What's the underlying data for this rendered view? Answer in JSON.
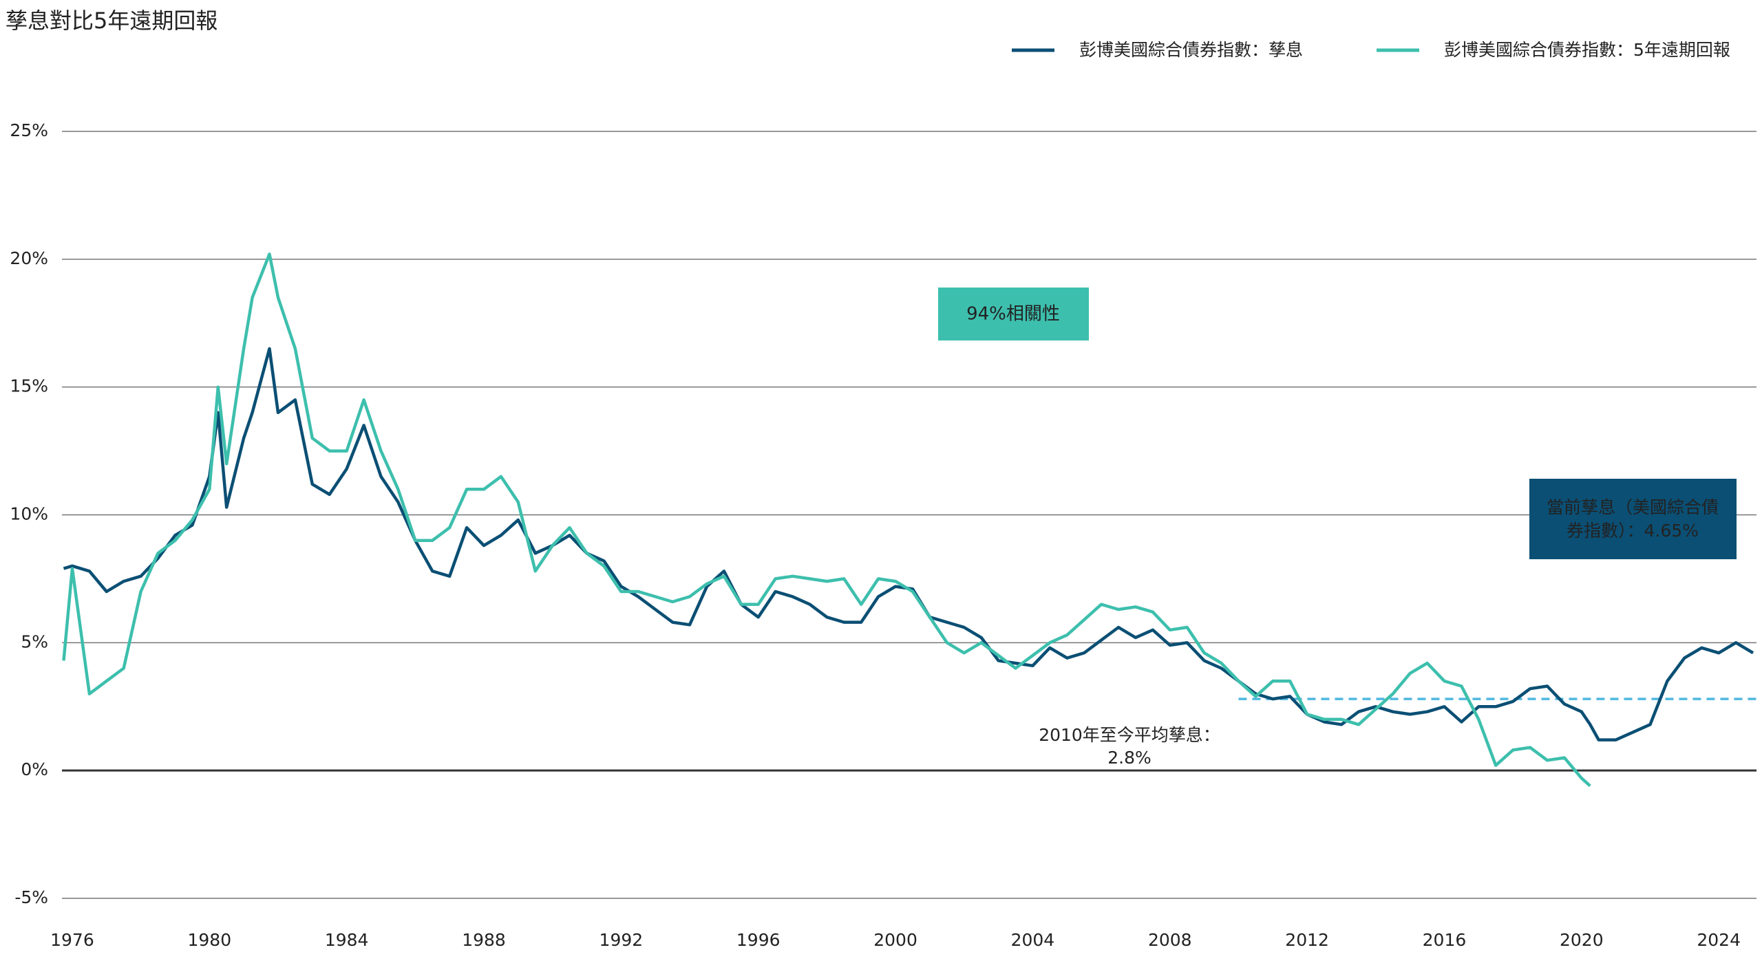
{
  "chart_data": {
    "type": "line",
    "title": "孳息對比5年遠期回報",
    "x": [
      1975.75,
      1976.0,
      1976.5,
      1977.0,
      1977.5,
      1978.0,
      1978.5,
      1979.0,
      1979.5,
      1980.0,
      1980.25,
      1980.5,
      1981.0,
      1981.25,
      1981.75,
      1982.0,
      1982.5,
      1983.0,
      1983.5,
      1984.0,
      1984.5,
      1985.0,
      1985.5,
      1986.0,
      1986.5,
      1987.0,
      1987.5,
      1988.0,
      1988.5,
      1989.0,
      1989.5,
      1990.0,
      1990.5,
      1991.0,
      1991.5,
      1992.0,
      1992.5,
      1993.0,
      1993.5,
      1994.0,
      1994.5,
      1995.0,
      1995.5,
      1996.0,
      1996.5,
      1997.0,
      1997.5,
      1998.0,
      1998.5,
      1999.0,
      1999.5,
      2000.0,
      2000.5,
      2001.0,
      2001.5,
      2002.0,
      2002.5,
      2003.0,
      2003.5,
      2004.0,
      2004.5,
      2005.0,
      2005.5,
      2006.0,
      2006.5,
      2007.0,
      2007.5,
      2008.0,
      2008.5,
      2009.0,
      2009.5,
      2010.0,
      2010.5,
      2011.0,
      2011.5,
      2012.0,
      2012.5,
      2013.0,
      2013.5,
      2014.0,
      2014.5,
      2015.0,
      2015.5,
      2016.0,
      2016.5,
      2017.0,
      2017.5,
      2018.0,
      2018.5,
      2019.0,
      2019.5,
      2020.0,
      2020.25,
      2020.5,
      2021.0,
      2021.5,
      2022.0,
      2022.5,
      2023.0,
      2023.5,
      2024.0,
      2024.5,
      2025.0
    ],
    "series": [
      {
        "name": "彭博美國綜合債券指數：孳息",
        "color": "#0b4f74",
        "values": [
          7.9,
          8.0,
          7.8,
          7.0,
          7.4,
          7.6,
          8.3,
          9.2,
          9.6,
          11.5,
          14.0,
          10.3,
          13.0,
          14.0,
          16.5,
          14.0,
          14.5,
          11.2,
          10.8,
          11.8,
          13.5,
          11.5,
          10.5,
          9.0,
          7.8,
          7.6,
          9.5,
          8.8,
          9.2,
          9.8,
          8.5,
          8.8,
          9.2,
          8.5,
          8.2,
          7.2,
          6.8,
          6.3,
          5.8,
          5.7,
          7.2,
          7.8,
          6.5,
          6.0,
          7.0,
          6.8,
          6.5,
          6.0,
          5.8,
          5.8,
          6.8,
          7.2,
          7.1,
          6.0,
          5.8,
          5.6,
          5.2,
          4.3,
          4.2,
          4.1,
          4.8,
          4.4,
          4.6,
          5.1,
          5.6,
          5.2,
          5.5,
          4.9,
          5.0,
          4.3,
          4.0,
          3.5,
          3.0,
          2.8,
          2.9,
          2.2,
          1.9,
          1.8,
          2.3,
          2.5,
          2.3,
          2.2,
          2.3,
          2.5,
          1.9,
          2.5,
          2.5,
          2.7,
          3.2,
          3.3,
          2.6,
          2.3,
          1.8,
          1.2,
          1.2,
          1.5,
          1.8,
          3.5,
          4.4,
          4.8,
          4.6,
          5.0,
          4.6
        ]
      },
      {
        "name": "彭博美國綜合債券指數：5年遠期回報",
        "color": "#3dbfad",
        "values": [
          4.3,
          7.9,
          3.0,
          3.5,
          4.0,
          7.0,
          8.5,
          9.0,
          9.8,
          11.0,
          15.0,
          12.0,
          16.5,
          18.5,
          20.2,
          18.5,
          16.5,
          13.0,
          12.5,
          12.5,
          14.5,
          12.5,
          11.0,
          9.0,
          9.0,
          9.5,
          11.0,
          11.0,
          11.5,
          10.5,
          7.8,
          8.8,
          9.5,
          8.5,
          8.0,
          7.0,
          7.0,
          6.8,
          6.6,
          6.8,
          7.3,
          7.6,
          6.5,
          6.5,
          7.5,
          7.6,
          7.5,
          7.4,
          7.5,
          6.5,
          7.5,
          7.4,
          7.0,
          6.0,
          5.0,
          4.6,
          5.0,
          4.5,
          4.0,
          4.5,
          5.0,
          5.3,
          5.9,
          6.5,
          6.3,
          6.4,
          6.2,
          5.5,
          5.6,
          4.6,
          4.2,
          3.5,
          2.9,
          3.5,
          3.5,
          2.2,
          2.0,
          2.0,
          1.8,
          2.4,
          3.0,
          3.8,
          4.2,
          3.5,
          3.3,
          2.0,
          0.2,
          0.8,
          0.9,
          0.4,
          0.5,
          -0.3,
          -0.6,
          null,
          null,
          null,
          null,
          null,
          null,
          null,
          null,
          null,
          null
        ]
      }
    ],
    "xlim": [
      1975.7,
      2025.1
    ],
    "xticks": [
      1976,
      1980,
      1984,
      1988,
      1992,
      1996,
      2000,
      2004,
      2008,
      2012,
      2016,
      2020,
      2024
    ],
    "ylim": [
      -5,
      25
    ],
    "yticks": [
      {
        "value": -5,
        "label": "-5%"
      },
      {
        "value": 0,
        "label": "0%"
      },
      {
        "value": 5,
        "label": "5%"
      },
      {
        "value": 10,
        "label": "10%"
      },
      {
        "value": 15,
        "label": "15%"
      },
      {
        "value": 20,
        "label": "20%"
      },
      {
        "value": 25,
        "label": "25%"
      }
    ],
    "grid": true,
    "legend": "top-right",
    "correlation_label": "94%相關性",
    "current_yield_label": [
      "當前孳息（美國綜合債",
      "券指數）：4.65%"
    ],
    "average_line": {
      "label": "2010年至今平均孳息：",
      "value": 2.8,
      "value_label": "2.8%",
      "x_start": 2010,
      "color": "#4fb8e0"
    }
  }
}
